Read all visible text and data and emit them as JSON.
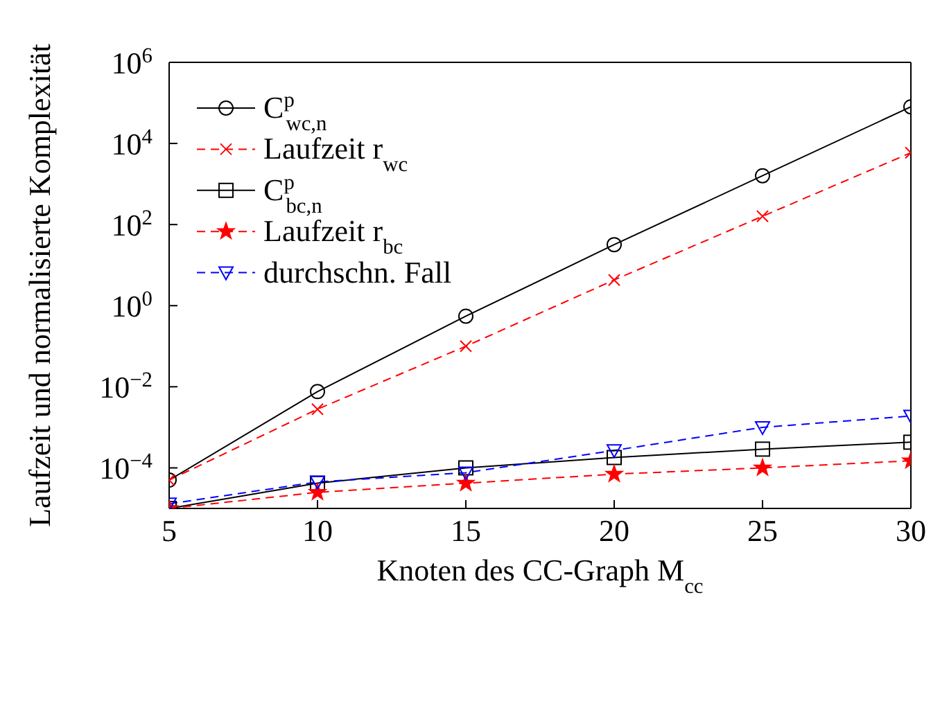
{
  "chart_data": {
    "type": "line",
    "xlabel": "Knoten des CC-Graph M$_{cc}$",
    "ylabel": "Laufzeit und normalisierte Komplexität",
    "log": "y",
    "grid": false,
    "legend": "top left",
    "x": [
      5,
      10,
      15,
      20,
      25,
      30
    ],
    "xlim": [
      5,
      30
    ],
    "xticks": [
      5,
      10,
      15,
      20,
      25,
      30
    ],
    "ylim": [
      1e-05,
      1000000
    ],
    "yticks": [
      {
        "value": 0.0001,
        "label": "10$^{−4}$"
      },
      {
        "value": 0.01,
        "label": "10$^{−2}$"
      },
      {
        "value": 1,
        "label": "10$^{0}$"
      },
      {
        "value": 100,
        "label": "10$^{2}$"
      },
      {
        "value": 10000,
        "label": "10$^{4}$"
      },
      {
        "value": 1000000,
        "label": "10$^{6}$"
      }
    ],
    "series": [
      {
        "name": "C$^{p}$$_{wc,n}$",
        "color": "#000000",
        "marker": "circle",
        "line_style": "solid",
        "values": [
          5e-05,
          0.0076,
          0.55,
          32,
          1600,
          80000
        ]
      },
      {
        "name": "Laufzeit r$_{wc}$",
        "color": "#ff0000",
        "marker": "cross",
        "line_style": "dashed",
        "values": [
          5e-05,
          0.0028,
          0.1,
          4.3,
          160,
          5900
        ]
      },
      {
        "name": "C$^{p}$$_{bc,n}$",
        "color": "#000000",
        "marker": "square",
        "line_style": "solid",
        "values": [
          1e-05,
          4.2e-05,
          0.0001,
          0.00018,
          0.00029,
          0.00043
        ]
      },
      {
        "name": "Laufzeit r$_{bc}$",
        "color": "#ff0000",
        "marker": "star",
        "line_style": "dashed",
        "values": [
          1e-05,
          2.5e-05,
          4.2e-05,
          7e-05,
          0.0001,
          0.00015
        ]
      },
      {
        "name": "durchschn. Fall",
        "color": "#0000ff",
        "marker": "triangle",
        "line_style": "dashed",
        "values": [
          1.3e-05,
          4.5e-05,
          7.6e-05,
          0.00027,
          0.001,
          0.0019
        ]
      }
    ]
  }
}
